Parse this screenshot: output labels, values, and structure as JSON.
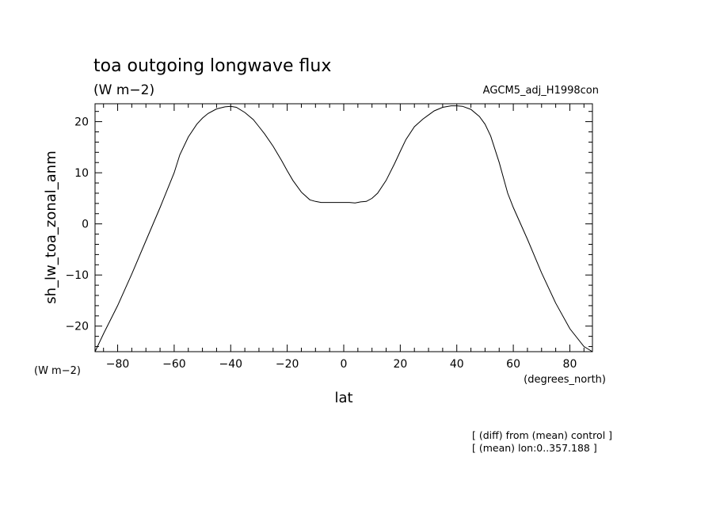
{
  "chart_data": {
    "type": "line",
    "title": "toa outgoing longwave flux",
    "subtitle_units": "(W m−2)",
    "experiment": "AGCM5_adj_H1998con",
    "xlabel": "lat",
    "xunits": "(degrees_north)",
    "ylabel": "sh_lw_toa_zonal_anm",
    "yunits": "(W m−2)",
    "xlim": [
      -88,
      88
    ],
    "ylim": [
      -25,
      23.5
    ],
    "xticks": [
      -80,
      -60,
      -40,
      -20,
      0,
      20,
      40,
      60,
      80
    ],
    "xtick_labels": [
      "−80",
      "−60",
      "−40",
      "−20",
      "0",
      "20",
      "40",
      "60",
      "80"
    ],
    "yticks": [
      -20,
      -10,
      0,
      10,
      20
    ],
    "ytick_labels": [
      "−20",
      "−10",
      "0",
      "10",
      "20"
    ],
    "notes": [
      "[ (diff) from (mean) control ]",
      "[ (mean) lon:0..357.188 ]"
    ],
    "series": [
      {
        "x": [
          -88,
          -85,
          -80,
          -75,
          -70,
          -65,
          -60,
          -58,
          -55,
          -52,
          -50,
          -48,
          -45,
          -42,
          -40,
          -38,
          -35,
          -32,
          -30,
          -28,
          -25,
          -22,
          -20,
          -18,
          -15,
          -12,
          -10,
          -8,
          -5,
          -2,
          0,
          2,
          4,
          6,
          8,
          10,
          12,
          15,
          18,
          20,
          22,
          25,
          28,
          30,
          32,
          35,
          38,
          40,
          42,
          45,
          48,
          50,
          52,
          55,
          58,
          60,
          65,
          70,
          75,
          80,
          85,
          88
        ],
        "y": [
          -25.0,
          -21.5,
          -16.0,
          -9.8,
          -3.3,
          3.2,
          10.0,
          13.5,
          17.0,
          19.5,
          20.7,
          21.6,
          22.5,
          22.9,
          23.0,
          22.8,
          21.8,
          20.4,
          19.0,
          17.6,
          15.2,
          12.4,
          10.4,
          8.5,
          6.2,
          4.7,
          4.4,
          4.2,
          4.2,
          4.2,
          4.2,
          4.2,
          4.1,
          4.3,
          4.4,
          5.0,
          6.0,
          8.5,
          11.8,
          14.2,
          16.5,
          19.0,
          20.5,
          21.3,
          22.1,
          22.8,
          23.1,
          23.1,
          23.0,
          22.4,
          21.0,
          19.5,
          17.2,
          12.0,
          6.0,
          3.2,
          -3.0,
          -9.6,
          -15.5,
          -20.5,
          -24.0,
          -25.0
        ]
      }
    ]
  }
}
